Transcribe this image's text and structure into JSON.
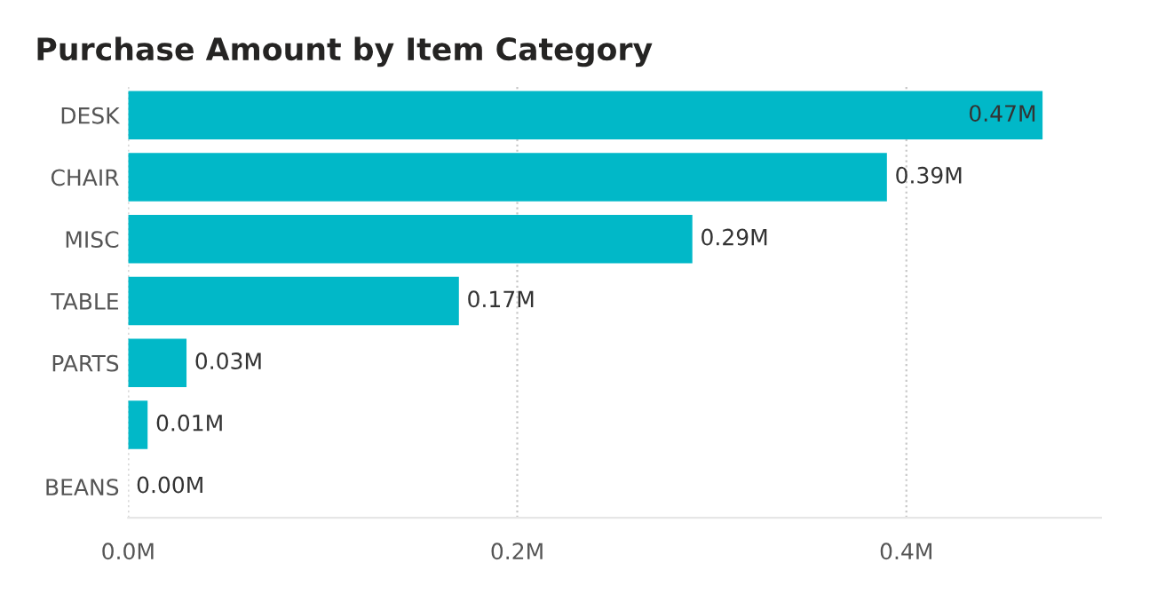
{
  "chart_data": {
    "type": "bar",
    "orientation": "horizontal",
    "title": "Purchase Amount by Item Category",
    "categories": [
      "DESK",
      "CHAIR",
      "MISC",
      "TABLE",
      "PARTS",
      null,
      "BEANS"
    ],
    "values": [
      0.47,
      0.39,
      0.29,
      0.17,
      0.03,
      0.01,
      0.0
    ],
    "value_labels": [
      "0.47M",
      "0.39M",
      "0.29M",
      "0.17M",
      "0.03M",
      "0.01M",
      "0.00M"
    ],
    "color": "#01b8c8",
    "xticks": [
      {
        "value": 0,
        "label": "0.0M"
      },
      {
        "value": 0.2,
        "label": "0.2M"
      },
      {
        "value": 0.4,
        "label": "0.4M"
      }
    ],
    "xlim": [
      0,
      0.5
    ],
    "grid": "x"
  }
}
